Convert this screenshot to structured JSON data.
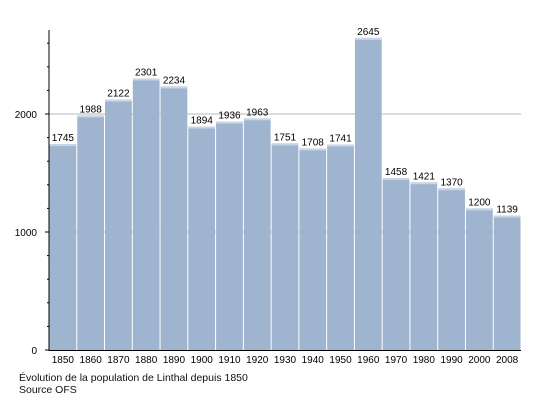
{
  "chart_data": {
    "type": "bar",
    "categories": [
      "1850",
      "1860",
      "1870",
      "1880",
      "1890",
      "1900",
      "1910",
      "1920",
      "1930",
      "1940",
      "1950",
      "1960",
      "1970",
      "1980",
      "1990",
      "2000",
      "2008"
    ],
    "values": [
      1745,
      1988,
      2122,
      2301,
      2234,
      1894,
      1936,
      1963,
      1751,
      1708,
      1741,
      2645,
      1458,
      1421,
      1370,
      1200,
      1139
    ],
    "data_labels": [
      "1745",
      "1988",
      "2122",
      "2301",
      "2234",
      "1894",
      "1936",
      "1963",
      "1751",
      "1708",
      "1741",
      "2645",
      "1458",
      "1421",
      "1370",
      "1200",
      "1139"
    ],
    "yticks": [
      "0",
      "1000",
      "2000"
    ],
    "ylim": [
      0,
      2700
    ],
    "grid": true,
    "colors": {
      "bar": "#9fb4cf",
      "bar_top": "#c9d6e5",
      "grid": "#b9b9b9",
      "axis": "#000000"
    }
  },
  "caption": {
    "line1": "Évolution de la population de Linthal depuis 1850",
    "line2": "Source OFS"
  }
}
